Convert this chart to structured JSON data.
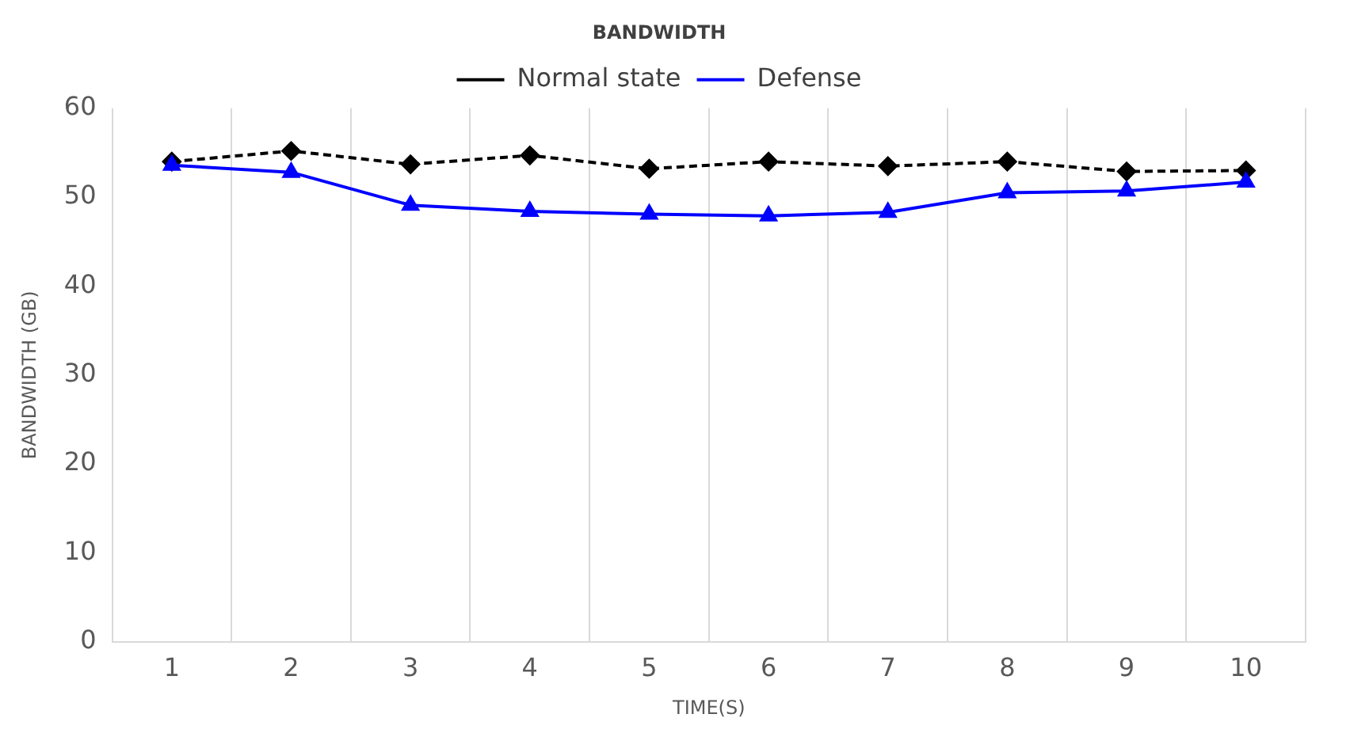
{
  "chart_data": {
    "type": "line",
    "title": "BANDWIDTH",
    "xlabel": "TIME(S)",
    "ylabel": "BANDWIDTH (GB)",
    "categories": [
      "1",
      "2",
      "3",
      "4",
      "5",
      "6",
      "7",
      "8",
      "9",
      "10"
    ],
    "series": [
      {
        "name": "Normal state",
        "color": "#000000",
        "marker": "diamond",
        "line_style": "dashed",
        "values": [
          54.0,
          55.2,
          53.7,
          54.7,
          53.2,
          54.0,
          53.5,
          54.0,
          52.9,
          53.0
        ]
      },
      {
        "name": "Defense",
        "color": "#0000ff",
        "marker": "triangle",
        "line_style": "solid",
        "values": [
          53.6,
          52.8,
          49.1,
          48.4,
          48.1,
          47.9,
          48.3,
          50.5,
          50.7,
          51.7
        ]
      }
    ],
    "ylim": [
      0,
      60
    ],
    "yticks": [
      0,
      10,
      20,
      30,
      40,
      50,
      60
    ],
    "grid": "x",
    "legend": "top"
  }
}
